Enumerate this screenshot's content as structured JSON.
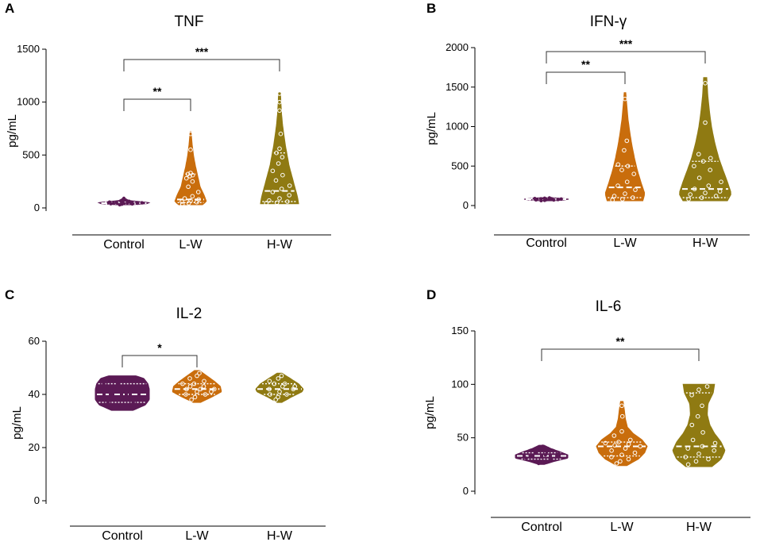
{
  "colors": {
    "control": "#5b1a55",
    "lw": "#c96d0c",
    "hw": "#8f7a12",
    "axis": "#000000",
    "bracket": "#333333"
  },
  "chart_data": [
    {
      "type": "violin",
      "letter": "A",
      "title": "TNF",
      "ylabel": "pg/mL",
      "ylim": [
        0,
        1500
      ],
      "yticks": [
        0,
        500,
        1000,
        1500
      ],
      "categories": [
        "Control",
        "L-W",
        "H-W"
      ],
      "series": [
        {
          "name": "Control",
          "min": 30,
          "max": 90,
          "median": 45,
          "q1": 38,
          "q3": 55,
          "profile": [
            [
              30,
              0.3
            ],
            [
              40,
              0.9
            ],
            [
              50,
              1.0
            ],
            [
              60,
              0.6
            ],
            [
              70,
              0.2
            ],
            [
              90,
              0.05
            ]
          ],
          "points": [
            30,
            35,
            38,
            40,
            42,
            44,
            45,
            46,
            48,
            50,
            52,
            55,
            58,
            62,
            70,
            90
          ]
        },
        {
          "name": "L-W",
          "min": 30,
          "max": 720,
          "median": 80,
          "q1": 50,
          "q3": 320,
          "profile": [
            [
              30,
              0.75
            ],
            [
              60,
              1.0
            ],
            [
              120,
              0.85
            ],
            [
              200,
              0.6
            ],
            [
              300,
              0.45
            ],
            [
              400,
              0.3
            ],
            [
              500,
              0.18
            ],
            [
              600,
              0.1
            ],
            [
              720,
              0.03
            ]
          ],
          "points": [
            35,
            45,
            55,
            60,
            70,
            80,
            90,
            110,
            150,
            200,
            250,
            280,
            300,
            310,
            320,
            330,
            550,
            700
          ]
        },
        {
          "name": "H-W",
          "min": 40,
          "max": 1090,
          "median": 160,
          "q1": 60,
          "q3": 520,
          "profile": [
            [
              40,
              1.0
            ],
            [
              100,
              0.95
            ],
            [
              200,
              0.8
            ],
            [
              300,
              0.65
            ],
            [
              400,
              0.5
            ],
            [
              500,
              0.4
            ],
            [
              600,
              0.3
            ],
            [
              700,
              0.22
            ],
            [
              800,
              0.15
            ],
            [
              900,
              0.1
            ],
            [
              1000,
              0.07
            ],
            [
              1090,
              0.05
            ]
          ],
          "points": [
            45,
            50,
            60,
            70,
            90,
            120,
            150,
            180,
            210,
            260,
            310,
            350,
            420,
            480,
            520,
            560,
            700,
            920,
            1000,
            1080
          ]
        }
      ],
      "comparisons": [
        {
          "from": 0,
          "to": 1,
          "label": "**"
        },
        {
          "from": 0,
          "to": 2,
          "label": "***"
        }
      ]
    },
    {
      "type": "violin",
      "letter": "B",
      "title": "IFN-γ",
      "ylabel": "pg/mL",
      "ylim": [
        0,
        2000
      ],
      "yticks": [
        0,
        500,
        1000,
        1500,
        2000
      ],
      "categories": [
        "Control",
        "L-W",
        "H-W"
      ],
      "series": [
        {
          "name": "Control",
          "min": 60,
          "max": 100,
          "median": 80,
          "q1": 72,
          "q3": 88,
          "profile": [
            [
              60,
              0.3
            ],
            [
              70,
              0.8
            ],
            [
              80,
              1.0
            ],
            [
              90,
              0.7
            ],
            [
              100,
              0.2
            ]
          ],
          "points": [
            62,
            66,
            70,
            72,
            74,
            76,
            78,
            80,
            82,
            84,
            86,
            88,
            92,
            96
          ]
        },
        {
          "name": "L-W",
          "min": 60,
          "max": 1430,
          "median": 230,
          "q1": 100,
          "q3": 500,
          "profile": [
            [
              60,
              0.9
            ],
            [
              150,
              1.0
            ],
            [
              300,
              0.8
            ],
            [
              450,
              0.62
            ],
            [
              600,
              0.48
            ],
            [
              750,
              0.36
            ],
            [
              900,
              0.26
            ],
            [
              1100,
              0.15
            ],
            [
              1300,
              0.08
            ],
            [
              1430,
              0.04
            ]
          ],
          "points": [
            70,
            80,
            100,
            120,
            150,
            200,
            250,
            300,
            400,
            450,
            500,
            520,
            700,
            820,
            1350
          ]
        },
        {
          "name": "H-W",
          "min": 60,
          "max": 1620,
          "median": 210,
          "q1": 100,
          "q3": 560,
          "profile": [
            [
              60,
              0.85
            ],
            [
              150,
              1.0
            ],
            [
              300,
              0.85
            ],
            [
              450,
              0.68
            ],
            [
              600,
              0.52
            ],
            [
              800,
              0.36
            ],
            [
              1000,
              0.24
            ],
            [
              1200,
              0.16
            ],
            [
              1400,
              0.1
            ],
            [
              1620,
              0.06
            ]
          ],
          "points": [
            80,
            100,
            120,
            140,
            160,
            180,
            210,
            250,
            300,
            350,
            450,
            500,
            560,
            600,
            650,
            1050,
            1550
          ]
        }
      ],
      "comparisons": [
        {
          "from": 0,
          "to": 1,
          "label": "**"
        },
        {
          "from": 0,
          "to": 2,
          "label": "***"
        }
      ]
    },
    {
      "type": "violin",
      "letter": "C",
      "title": "IL-2",
      "ylabel": "pg/mL",
      "ylim": [
        0,
        60
      ],
      "yticks": [
        0,
        20,
        40,
        60
      ],
      "categories": [
        "Control",
        "L-W",
        "H-W"
      ],
      "series": [
        {
          "name": "Control",
          "min": 34,
          "max": 47,
          "median": 40,
          "q1": 37,
          "q3": 44,
          "profile": [
            [
              34,
              0.4
            ],
            [
              36,
              0.85
            ],
            [
              38,
              1.0
            ],
            [
              40,
              1.0
            ],
            [
              42,
              1.0
            ],
            [
              44,
              0.95
            ],
            [
              46,
              0.8
            ],
            [
              47,
              0.5
            ]
          ],
          "points": [
            35,
            36,
            37,
            37,
            38,
            39,
            40,
            40,
            41,
            42,
            43,
            44,
            44,
            45,
            46
          ]
        },
        {
          "name": "L-W",
          "min": 37,
          "max": 49,
          "median": 42,
          "q1": 40,
          "q3": 44,
          "profile": [
            [
              37,
              0.15
            ],
            [
              39,
              0.6
            ],
            [
              41,
              1.0
            ],
            [
              43,
              0.95
            ],
            [
              45,
              0.7
            ],
            [
              47,
              0.4
            ],
            [
              49,
              0.1
            ]
          ],
          "points": [
            38,
            39,
            40,
            40,
            41,
            41,
            42,
            42,
            42,
            43,
            43,
            44,
            44,
            45,
            46,
            47,
            48
          ]
        },
        {
          "name": "H-W",
          "min": 37,
          "max": 48,
          "median": 42,
          "q1": 40,
          "q3": 44,
          "profile": [
            [
              37,
              0.1
            ],
            [
              39,
              0.5
            ],
            [
              41,
              0.95
            ],
            [
              42,
              1.0
            ],
            [
              44,
              0.8
            ],
            [
              46,
              0.45
            ],
            [
              48,
              0.1
            ]
          ],
          "points": [
            38,
            39,
            40,
            40,
            41,
            42,
            42,
            43,
            43,
            44,
            44,
            45,
            46,
            47
          ]
        }
      ],
      "comparisons": [
        {
          "from": 0,
          "to": 1,
          "label": "*"
        }
      ]
    },
    {
      "type": "violin",
      "letter": "D",
      "title": "IL-6",
      "ylabel": "pg/mL",
      "ylim": [
        0,
        150
      ],
      "yticks": [
        0,
        50,
        100,
        150
      ],
      "categories": [
        "Control",
        "L-W",
        "H-W"
      ],
      "series": [
        {
          "name": "Control",
          "min": 25,
          "max": 43,
          "median": 33,
          "q1": 30,
          "q3": 36,
          "profile": [
            [
              25,
              0.1
            ],
            [
              28,
              0.5
            ],
            [
              31,
              1.0
            ],
            [
              34,
              1.0
            ],
            [
              37,
              0.7
            ],
            [
              40,
              0.35
            ],
            [
              43,
              0.1
            ]
          ],
          "points": [
            26,
            28,
            30,
            31,
            32,
            33,
            33,
            34,
            35,
            36,
            37,
            38,
            40,
            42
          ]
        },
        {
          "name": "L-W",
          "min": 24,
          "max": 84,
          "median": 42,
          "q1": 33,
          "q3": 46,
          "profile": [
            [
              24,
              0.2
            ],
            [
              30,
              0.65
            ],
            [
              36,
              0.9
            ],
            [
              42,
              1.0
            ],
            [
              48,
              0.8
            ],
            [
              54,
              0.45
            ],
            [
              60,
              0.22
            ],
            [
              68,
              0.14
            ],
            [
              76,
              0.1
            ],
            [
              84,
              0.05
            ]
          ],
          "points": [
            26,
            28,
            30,
            32,
            34,
            36,
            38,
            40,
            42,
            43,
            44,
            45,
            46,
            48,
            52,
            56,
            70,
            80
          ]
        },
        {
          "name": "H-W",
          "min": 23,
          "max": 100,
          "median": 42,
          "q1": 32,
          "q3": 92,
          "profile": [
            [
              23,
              0.5
            ],
            [
              30,
              0.85
            ],
            [
              38,
              1.0
            ],
            [
              46,
              0.85
            ],
            [
              54,
              0.6
            ],
            [
              62,
              0.42
            ],
            [
              72,
              0.32
            ],
            [
              82,
              0.35
            ],
            [
              92,
              0.55
            ],
            [
              100,
              0.6
            ]
          ],
          "points": [
            25,
            28,
            30,
            32,
            35,
            38,
            40,
            42,
            45,
            48,
            55,
            62,
            70,
            80,
            90,
            95,
            98
          ]
        }
      ],
      "comparisons": [
        {
          "from": 0,
          "to": 2,
          "label": "**"
        }
      ]
    }
  ]
}
